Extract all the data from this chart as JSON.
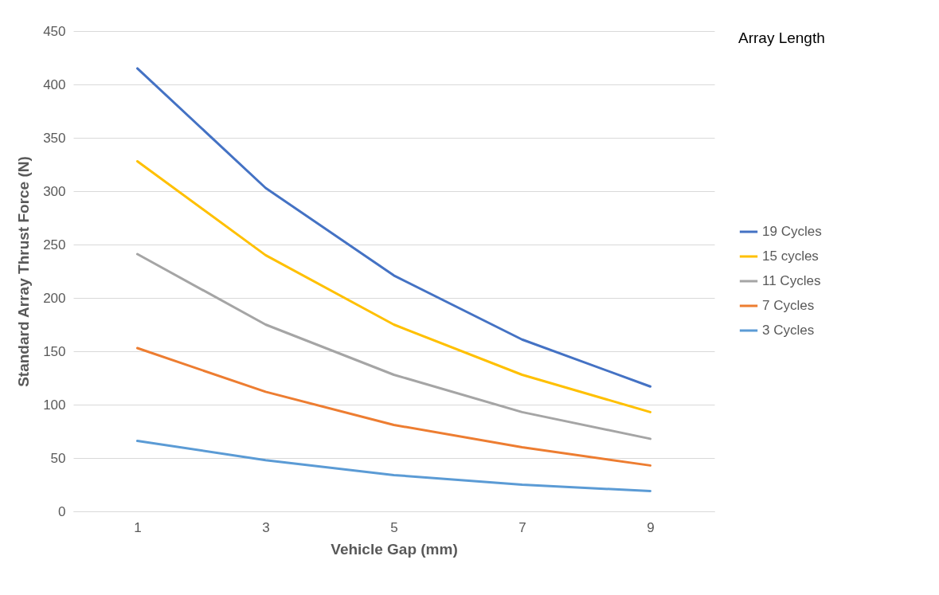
{
  "chart_data": {
    "type": "line",
    "xlabel": "Vehicle Gap (mm)",
    "ylabel": "Standard Array Thrust Force (N)",
    "legend_title": "Array Length",
    "categories": [
      "1",
      "3",
      "5",
      "7",
      "9"
    ],
    "series": [
      {
        "name": "19 Cycles",
        "color": "#4472c4",
        "values": [
          415,
          303,
          221,
          161,
          117
        ]
      },
      {
        "name": "15 cycles",
        "color": "#ffc000",
        "values": [
          328,
          240,
          175,
          128,
          93
        ]
      },
      {
        "name": "11 Cycles",
        "color": "#a5a5a5",
        "values": [
          241,
          175,
          128,
          93,
          68
        ]
      },
      {
        "name": "7 Cycles",
        "color": "#ed7d31",
        "values": [
          153,
          112,
          81,
          60,
          43
        ]
      },
      {
        "name": "3 Cycles",
        "color": "#5b9bd5",
        "values": [
          66,
          48,
          34,
          25,
          19
        ]
      }
    ],
    "ylim": [
      0,
      450
    ],
    "yticks": [
      0,
      50,
      100,
      150,
      200,
      250,
      300,
      350,
      400,
      450
    ],
    "grid": "y",
    "legend": "right"
  }
}
